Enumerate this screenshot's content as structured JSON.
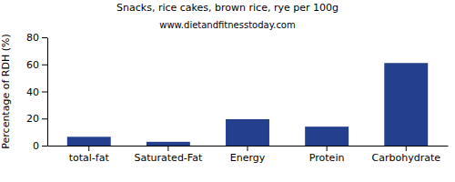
{
  "chart_data": {
    "type": "bar",
    "title": "Snacks, rice cakes, brown rice, rye per 100g",
    "subtitle": "www.dietandfitnesstoday.com",
    "y_label": "Percentage of RDH (%)",
    "categories": [
      "total-fat",
      "Saturated-Fat",
      "Energy",
      "Protein",
      "Carbohydrate"
    ],
    "values": [
      6.5,
      2.8,
      19.5,
      14,
      61
    ],
    "color": "#233f8e",
    "ylim": [
      0,
      80
    ],
    "yticks": [
      0,
      20,
      40,
      60,
      80
    ],
    "grid": false
  }
}
